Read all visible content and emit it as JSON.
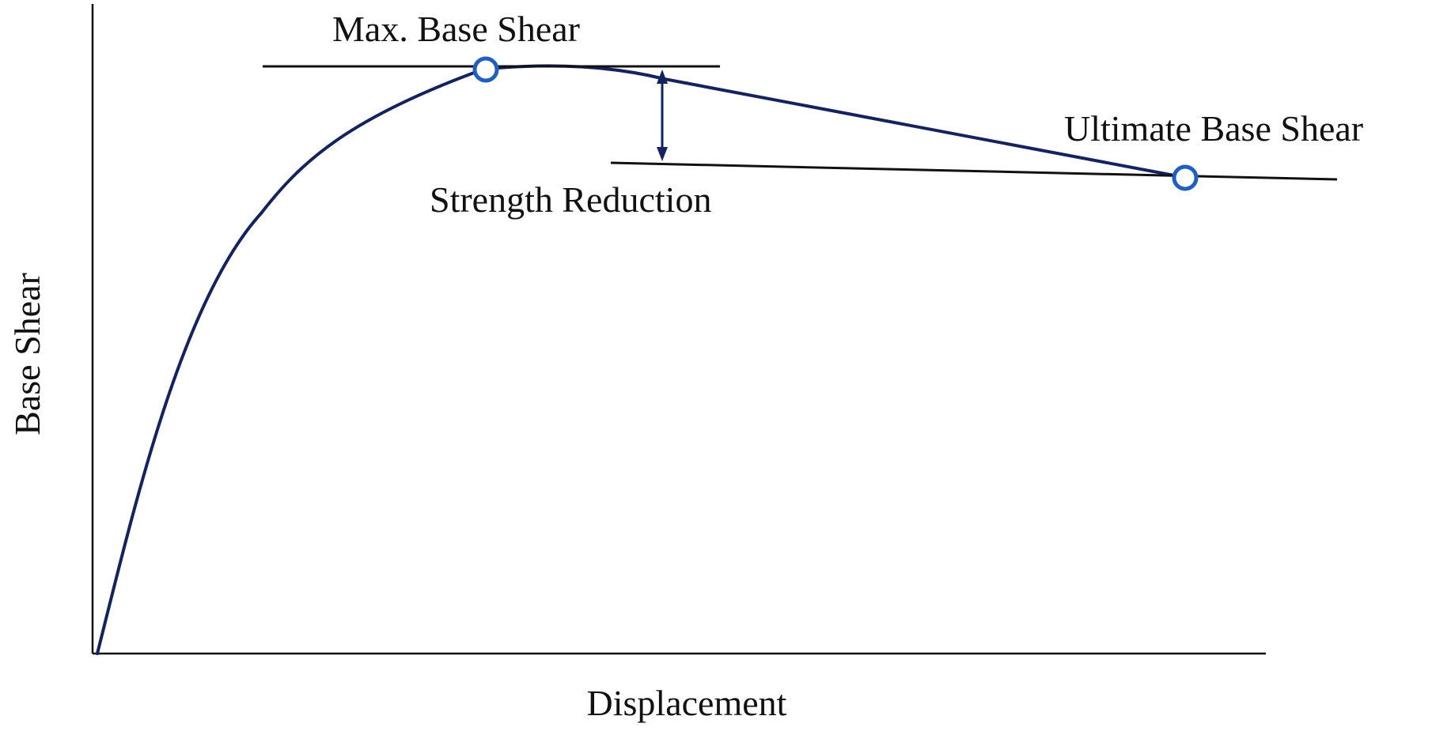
{
  "figure": {
    "xlabel": "Displacement",
    "ylabel": "Base Shear",
    "annotations": {
      "max_base_shear": "Max. Base Shear",
      "strength_reduction": "Strength Reduction",
      "ultimate_base_shear": "Ultimate Base Shear"
    },
    "colors": {
      "curve": "#14235e",
      "marker": "#1f5fbf",
      "axis": "#111111"
    }
  }
}
